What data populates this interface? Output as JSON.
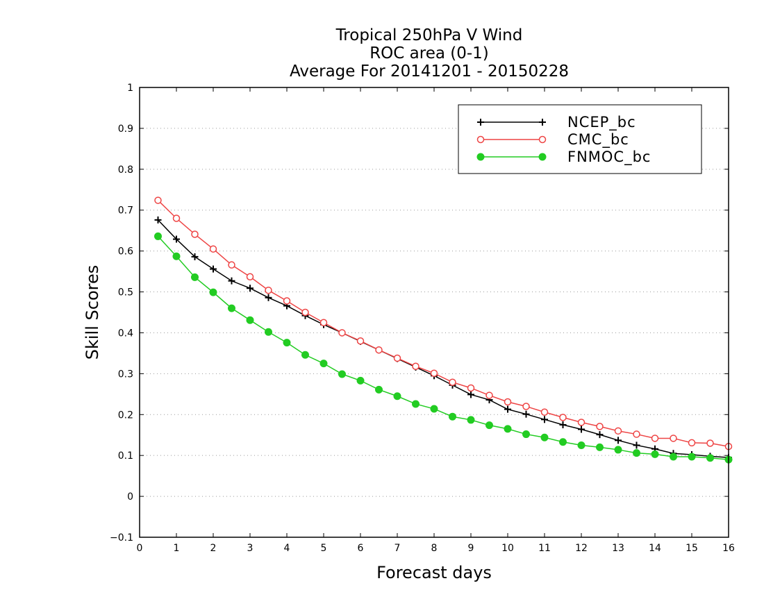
{
  "chart_data": {
    "type": "line",
    "title": [
      "Tropical 250hPa V Wind",
      "ROC area (0-1)",
      "Average For 20141201 - 20150228"
    ],
    "xlabel": "Forecast days",
    "ylabel": "Skill Scores",
    "xlim": [
      0,
      16
    ],
    "ylim": [
      -0.1,
      1
    ],
    "xticks": [
      0,
      1,
      2,
      3,
      4,
      5,
      6,
      7,
      8,
      9,
      10,
      11,
      12,
      13,
      14,
      15,
      16
    ],
    "yticks": [
      -0.1,
      0,
      0.1,
      0.2,
      0.3,
      0.4,
      0.5,
      0.6,
      0.7,
      0.8,
      0.9,
      1
    ],
    "ytick_labels": [
      "−0.1",
      "0",
      "0.1",
      "0.2",
      "0.3",
      "0.4",
      "0.5",
      "0.6",
      "0.7",
      "0.8",
      "0.9",
      "1"
    ],
    "grid": "horizontal dotted",
    "legend_position": "top-right",
    "x": [
      0.5,
      1,
      1.5,
      2,
      2.5,
      3,
      3.5,
      4,
      4.5,
      5,
      5.5,
      6,
      6.5,
      7,
      7.5,
      8,
      8.5,
      9,
      9.5,
      10,
      10.5,
      11,
      11.5,
      12,
      12.5,
      13,
      13.5,
      14,
      14.5,
      15,
      15.5,
      16
    ],
    "series": [
      {
        "name": "NCEP_bc",
        "color": "#000000",
        "marker": "plus",
        "values": [
          0.676,
          0.629,
          0.586,
          0.556,
          0.527,
          0.509,
          0.486,
          0.466,
          0.442,
          0.42,
          0.4,
          0.379,
          0.358,
          0.337,
          0.316,
          0.295,
          0.272,
          0.249,
          0.236,
          0.213,
          0.201,
          0.188,
          0.175,
          0.164,
          0.151,
          0.137,
          0.125,
          0.116,
          0.105,
          0.102,
          0.098,
          0.095
        ]
      },
      {
        "name": "CMC_bc",
        "color": "#ee4444",
        "marker": "open-circle",
        "values": [
          0.724,
          0.68,
          0.641,
          0.605,
          0.566,
          0.537,
          0.504,
          0.478,
          0.45,
          0.425,
          0.4,
          0.38,
          0.358,
          0.338,
          0.318,
          0.301,
          0.279,
          0.265,
          0.247,
          0.231,
          0.22,
          0.206,
          0.193,
          0.181,
          0.171,
          0.16,
          0.152,
          0.142,
          0.142,
          0.131,
          0.13,
          0.122
        ]
      },
      {
        "name": "FNMOC_bc",
        "color": "#22cc22",
        "marker": "filled-circle",
        "values": [
          0.636,
          0.587,
          0.536,
          0.499,
          0.46,
          0.431,
          0.402,
          0.376,
          0.346,
          0.325,
          0.299,
          0.283,
          0.261,
          0.245,
          0.226,
          0.214,
          0.195,
          0.187,
          0.174,
          0.165,
          0.152,
          0.144,
          0.133,
          0.125,
          0.12,
          0.114,
          0.106,
          0.103,
          0.097,
          0.097,
          0.094,
          0.09
        ]
      }
    ]
  }
}
